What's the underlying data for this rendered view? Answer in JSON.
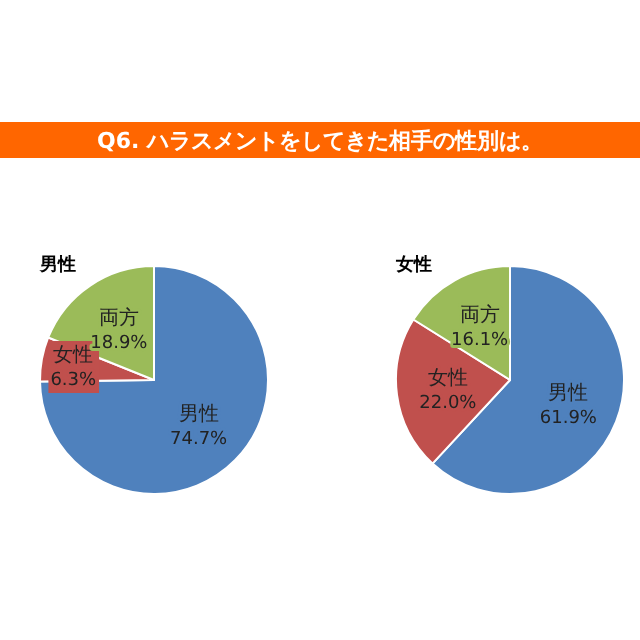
{
  "chart_data": [
    {
      "type": "pie",
      "title": "Q6. ハラスメントをしてきた相手の性別は。",
      "subtitle": "男性",
      "categories": [
        "男性",
        "女性",
        "両方"
      ],
      "values": [
        74.7,
        6.3,
        18.9
      ],
      "colors": [
        "#4f81bd",
        "#c0504d",
        "#9bbb59"
      ],
      "value_labels": [
        "74.7%",
        "6.3%",
        "18.9%"
      ]
    },
    {
      "type": "pie",
      "subtitle": "女性",
      "categories": [
        "男性",
        "女性",
        "両方"
      ],
      "values": [
        61.9,
        22.0,
        16.1
      ],
      "colors": [
        "#4f81bd",
        "#c0504d",
        "#9bbb59"
      ],
      "value_labels": [
        "61.9%",
        "22.0%",
        "16.1%"
      ]
    }
  ]
}
